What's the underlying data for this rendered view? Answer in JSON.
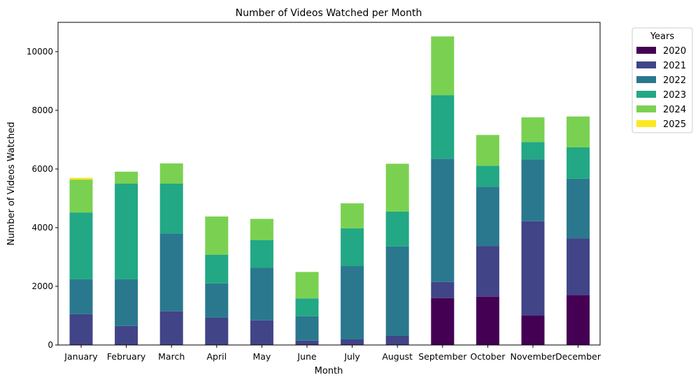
{
  "chart_data": {
    "type": "bar",
    "stacked": true,
    "title": "Number of Videos Watched per Month",
    "xlabel": "Month",
    "ylabel": "Number of Videos Watched",
    "ylim": [
      0,
      11000
    ],
    "yticks": [
      0,
      2000,
      4000,
      6000,
      8000,
      10000
    ],
    "grid": false,
    "legend": {
      "title": "Years",
      "placement": "outside-top-right"
    },
    "categories": [
      "January",
      "February",
      "March",
      "April",
      "May",
      "June",
      "July",
      "August",
      "September",
      "October",
      "November",
      "December"
    ],
    "series": [
      {
        "name": "2020",
        "color": "#440154",
        "values": [
          0,
          0,
          0,
          0,
          0,
          0,
          0,
          0,
          1600,
          1650,
          1000,
          1700
        ]
      },
      {
        "name": "2021",
        "color": "#414487",
        "values": [
          1050,
          650,
          1150,
          930,
          840,
          150,
          190,
          310,
          550,
          1720,
          3220,
          1930
        ]
      },
      {
        "name": "2022",
        "color": "#2a788e",
        "values": [
          1190,
          1590,
          2650,
          1170,
          1790,
          830,
          2500,
          3050,
          4200,
          2030,
          2110,
          2040
        ]
      },
      {
        "name": "2023",
        "color": "#22a884",
        "values": [
          2280,
          3260,
          1700,
          980,
          950,
          610,
          1290,
          1190,
          2170,
          710,
          590,
          1070
        ]
      },
      {
        "name": "2024",
        "color": "#7ad151",
        "values": [
          1120,
          410,
          690,
          1300,
          720,
          900,
          850,
          1630,
          2000,
          1050,
          840,
          1050
        ]
      },
      {
        "name": "2025",
        "color": "#fde725",
        "values": [
          60,
          0,
          0,
          0,
          0,
          0,
          0,
          0,
          0,
          0,
          0,
          0
        ]
      }
    ]
  }
}
